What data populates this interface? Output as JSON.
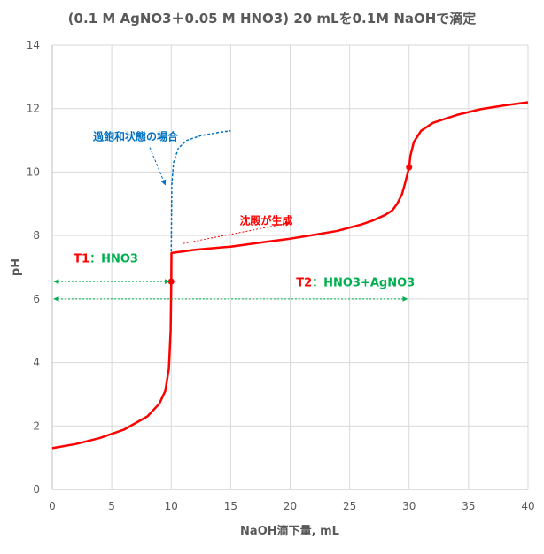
{
  "chart_data": {
    "type": "line",
    "title": "(0.1 M AgNO3＋0.05 M HNO3) 20 mLを0.1M NaOHで滴定",
    "xlabel": "NaOH滴下量, mL",
    "ylabel": "pH",
    "xlim": [
      0,
      40
    ],
    "ylim": [
      0,
      14
    ],
    "xticks": [
      0,
      5,
      10,
      15,
      20,
      25,
      30,
      35,
      40
    ],
    "yticks": [
      0,
      2,
      4,
      6,
      8,
      10,
      12,
      14
    ],
    "grid": true,
    "colors": {
      "main_curve": "#ff0000",
      "supersaturation": "#0070c0",
      "arrows": "#00b050",
      "grid": "#d9d9d9",
      "axis_text": "#595959"
    },
    "series": [
      {
        "values": [
          [
            0,
            1.3
          ],
          [
            2,
            1.43
          ],
          [
            4,
            1.62
          ],
          [
            6,
            1.88
          ],
          [
            8,
            2.3
          ],
          [
            9,
            2.7
          ],
          [
            9.5,
            3.1
          ],
          [
            9.8,
            3.8
          ],
          [
            9.95,
            5.0
          ],
          [
            10,
            6.55
          ],
          [
            10.02,
            7.45
          ],
          [
            12,
            7.55
          ],
          [
            15,
            7.65
          ],
          [
            18,
            7.8
          ],
          [
            20,
            7.9
          ],
          [
            22,
            8.02
          ],
          [
            24,
            8.15
          ],
          [
            26,
            8.35
          ],
          [
            27,
            8.48
          ],
          [
            28,
            8.65
          ],
          [
            28.6,
            8.8
          ],
          [
            29.0,
            9.0
          ],
          [
            29.4,
            9.3
          ],
          [
            29.7,
            9.7
          ],
          [
            29.9,
            10.0
          ],
          [
            30,
            10.15
          ],
          [
            30.1,
            10.5
          ],
          [
            30.4,
            10.95
          ],
          [
            31,
            11.3
          ],
          [
            32,
            11.55
          ],
          [
            34,
            11.8
          ],
          [
            36,
            11.98
          ],
          [
            38,
            12.1
          ],
          [
            40,
            12.2
          ]
        ]
      },
      {
        "values": [
          [
            10,
            7.5
          ],
          [
            10.05,
            9.6
          ],
          [
            10.2,
            10.3
          ],
          [
            10.6,
            10.75
          ],
          [
            11.3,
            11.0
          ],
          [
            12.5,
            11.15
          ],
          [
            14,
            11.25
          ],
          [
            15,
            11.3
          ]
        ]
      }
    ],
    "points": [
      {
        "x": 10,
        "y": 6.55
      },
      {
        "x": 30,
        "y": 10.15
      }
    ],
    "annotations": {
      "supersaturation": {
        "text": "過飽和状態の場合",
        "x": 7,
        "y": 11.0,
        "arrow_to": [
          9.5,
          9.6
        ]
      },
      "precipitate": {
        "text": "沈殿が生成",
        "x": 15,
        "y": 8.35,
        "arrow_from": [
          11,
          7.75
        ],
        "arrow_to": [
          20,
          8.4
        ]
      },
      "t1": {
        "label": "T1",
        "sep": "：",
        "text": "HNO3",
        "x_from": 0,
        "x_to": 10,
        "y": 6.55,
        "label_x": 1.8,
        "label_y": 7.15
      },
      "t2": {
        "label": "T2",
        "sep": "：",
        "text": "HNO3+AgNO3",
        "x_from": 0,
        "x_to": 30,
        "y": 6.0,
        "label_x": 20.5,
        "label_y": 6.4
      }
    }
  }
}
